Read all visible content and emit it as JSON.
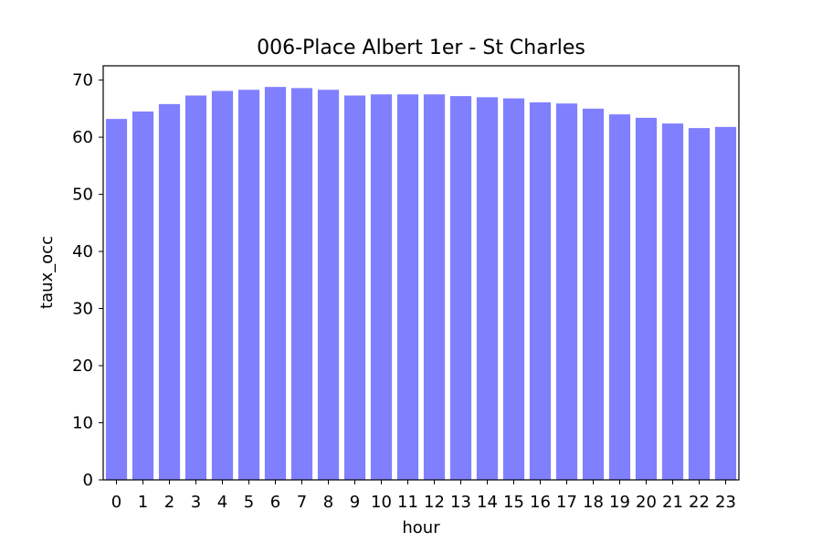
{
  "chart_data": {
    "type": "bar",
    "title": "006-Place Albert 1er - St Charles",
    "xlabel": "hour",
    "ylabel": "taux_occ",
    "categories": [
      "0",
      "1",
      "2",
      "3",
      "4",
      "5",
      "6",
      "7",
      "8",
      "9",
      "10",
      "11",
      "12",
      "13",
      "14",
      "15",
      "16",
      "17",
      "18",
      "19",
      "20",
      "21",
      "22",
      "23"
    ],
    "values": [
      63.2,
      64.5,
      65.8,
      67.3,
      68.1,
      68.3,
      68.8,
      68.6,
      68.3,
      67.3,
      67.5,
      67.5,
      67.5,
      67.2,
      67.0,
      66.8,
      66.1,
      65.9,
      65.0,
      64.0,
      63.4,
      62.4,
      61.6,
      61.8
    ],
    "ylim": [
      0,
      72.5
    ],
    "yticks": [
      0,
      10,
      20,
      30,
      40,
      50,
      60,
      70
    ],
    "bar_color": "#8080ff",
    "grid": false
  }
}
